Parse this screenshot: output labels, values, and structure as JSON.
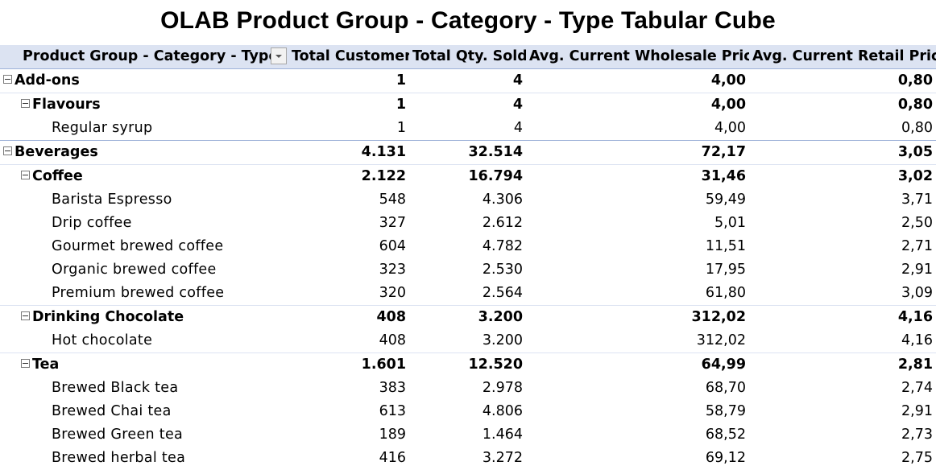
{
  "title": "OLAB Product Group - Category - Type Tabular Cube",
  "headers": {
    "row_label": "Product Group - Category - Type",
    "col1": "Total Customer",
    "col2": "Total Qty. Sold",
    "col3": "Avg. Current Wholesale Price",
    "col4": "Avg. Current Retail Price"
  },
  "rows": [
    {
      "label": "Add-ons",
      "level": 0,
      "total_customer": "1",
      "total_qty": "4",
      "avg_wholesale": "4,00",
      "avg_retail": "0,80"
    },
    {
      "label": "Flavours",
      "level": 1,
      "total_customer": "1",
      "total_qty": "4",
      "avg_wholesale": "4,00",
      "avg_retail": "0,80"
    },
    {
      "label": "Regular syrup",
      "level": 2,
      "total_customer": "1",
      "total_qty": "4",
      "avg_wholesale": "4,00",
      "avg_retail": "0,80"
    },
    {
      "label": "Beverages",
      "level": 0,
      "total_customer": "4.131",
      "total_qty": "32.514",
      "avg_wholesale": "72,17",
      "avg_retail": "3,05"
    },
    {
      "label": "Coffee",
      "level": 1,
      "total_customer": "2.122",
      "total_qty": "16.794",
      "avg_wholesale": "31,46",
      "avg_retail": "3,02"
    },
    {
      "label": "Barista Espresso",
      "level": 2,
      "total_customer": "548",
      "total_qty": "4.306",
      "avg_wholesale": "59,49",
      "avg_retail": "3,71"
    },
    {
      "label": "Drip coffee",
      "level": 2,
      "total_customer": "327",
      "total_qty": "2.612",
      "avg_wholesale": "5,01",
      "avg_retail": "2,50"
    },
    {
      "label": "Gourmet brewed coffee",
      "level": 2,
      "total_customer": "604",
      "total_qty": "4.782",
      "avg_wholesale": "11,51",
      "avg_retail": "2,71"
    },
    {
      "label": "Organic brewed coffee",
      "level": 2,
      "total_customer": "323",
      "total_qty": "2.530",
      "avg_wholesale": "17,95",
      "avg_retail": "2,91"
    },
    {
      "label": "Premium brewed coffee",
      "level": 2,
      "total_customer": "320",
      "total_qty": "2.564",
      "avg_wholesale": "61,80",
      "avg_retail": "3,09"
    },
    {
      "label": "Drinking Chocolate",
      "level": 1,
      "total_customer": "408",
      "total_qty": "3.200",
      "avg_wholesale": "312,02",
      "avg_retail": "4,16"
    },
    {
      "label": "Hot chocolate",
      "level": 2,
      "total_customer": "408",
      "total_qty": "3.200",
      "avg_wholesale": "312,02",
      "avg_retail": "4,16"
    },
    {
      "label": "Tea",
      "level": 1,
      "total_customer": "1.601",
      "total_qty": "12.520",
      "avg_wholesale": "64,99",
      "avg_retail": "2,81"
    },
    {
      "label": "Brewed Black tea",
      "level": 2,
      "total_customer": "383",
      "total_qty": "2.978",
      "avg_wholesale": "68,70",
      "avg_retail": "2,74"
    },
    {
      "label": "Brewed Chai tea",
      "level": 2,
      "total_customer": "613",
      "total_qty": "4.806",
      "avg_wholesale": "58,79",
      "avg_retail": "2,91"
    },
    {
      "label": "Brewed Green tea",
      "level": 2,
      "total_customer": "189",
      "total_qty": "1.464",
      "avg_wholesale": "68,52",
      "avg_retail": "2,73"
    },
    {
      "label": "Brewed herbal tea",
      "level": 2,
      "total_customer": "416",
      "total_qty": "3.272",
      "avg_wholesale": "69,12",
      "avg_retail": "2,75"
    }
  ],
  "colors": {
    "header_bg": "#dce3f2",
    "separator": "#9fb3d9"
  }
}
